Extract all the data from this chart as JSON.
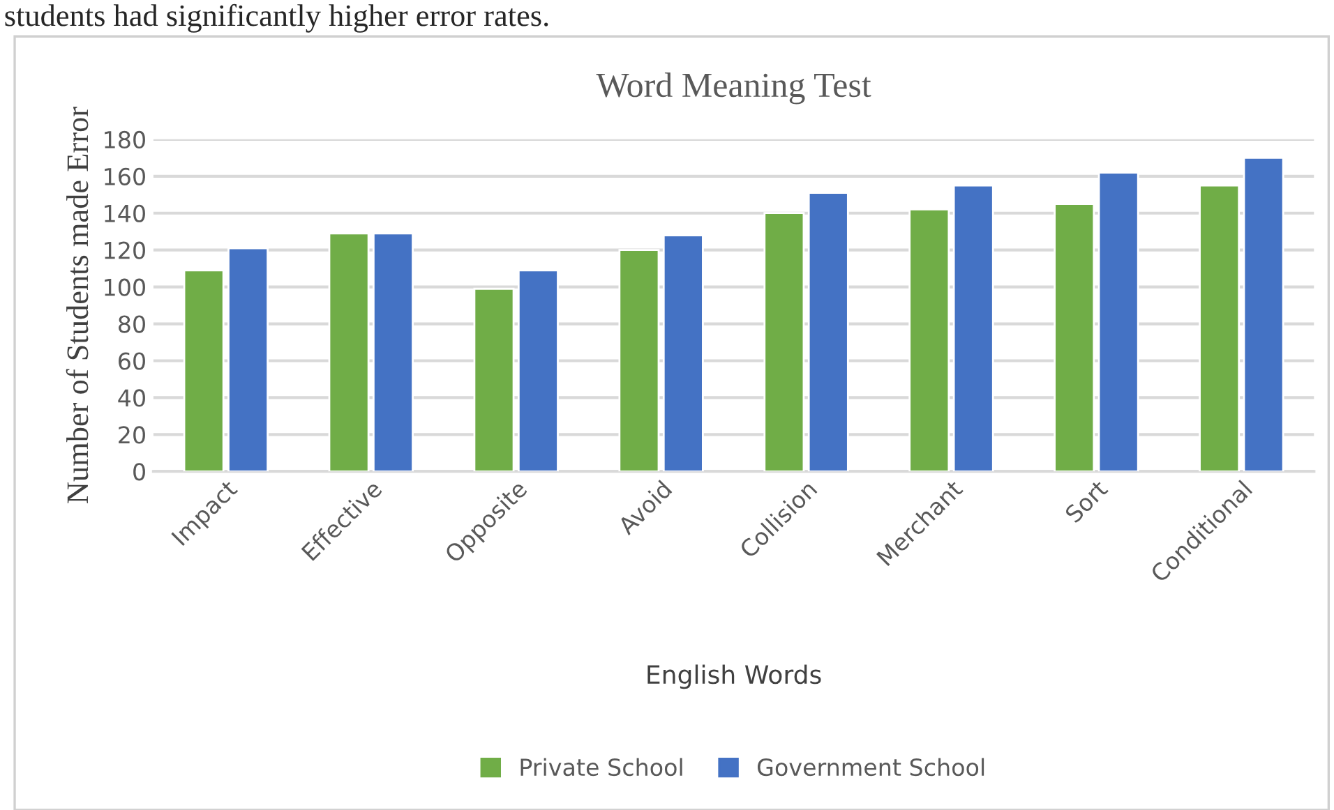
{
  "chart_data": {
    "type": "bar",
    "title": "Word Meaning Test",
    "xlabel": "English Words",
    "ylabel": "Number of Students made Error",
    "annotations": [
      "students had significantly higher error rates."
    ],
    "categories": [
      "Impact",
      "Effective",
      "Opposite",
      "Avoid",
      "Collision",
      "Merchant",
      "Sort",
      "Conditional"
    ],
    "series": [
      {
        "name": "Private School",
        "color": "#70ad47",
        "values": [
          109,
          129,
          99,
          120,
          140,
          142,
          145,
          155
        ]
      },
      {
        "name": "Government School",
        "color": "#4472c4",
        "values": [
          121,
          129,
          109,
          128,
          151,
          155,
          162,
          170
        ]
      }
    ],
    "ylim": [
      0,
      180
    ],
    "yticks": [
      0,
      20,
      40,
      60,
      80,
      100,
      120,
      140,
      160,
      180
    ],
    "grid": "y",
    "legend": "bottom"
  }
}
